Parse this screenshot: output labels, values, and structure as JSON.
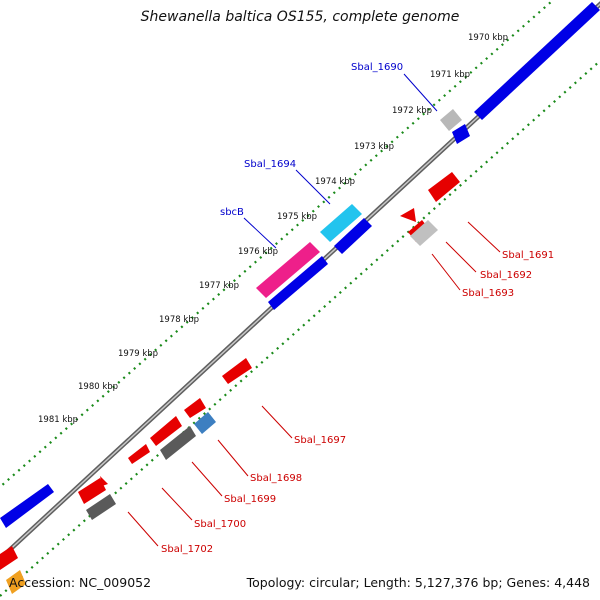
{
  "title": "Shewanella baltica OS155, complete genome",
  "footer": {
    "accession": "Accession: NC_009052",
    "summary": "Topology: circular; Length: 5,127,376 bp; Genes: 4,448"
  },
  "colors": {
    "forward_strand": "#0000e6",
    "reverse_strand": "#e60000",
    "pseudo_gray": "#b8b8b8",
    "dark_gray": "#5a5a5a",
    "cyan": "#22c4ee",
    "magenta": "#ee1f8a",
    "steel_blue": "#3d7fc1",
    "orange": "#f0a020",
    "backbone": "#888888",
    "gc_dots": "#1a8a1a",
    "label_blue": "#0000cc",
    "label_red": "#cc0000"
  },
  "kbp_ticks": [
    "1970 kbp",
    "1971 kbp",
    "1972 kbp",
    "1973 kbp",
    "1974 kbp",
    "1975 kbp",
    "1976 kbp",
    "1977 kbp",
    "1978 kbp",
    "1979 kbp",
    "1980 kbp",
    "1981 kbp"
  ],
  "gene_labels_top": [
    "Sbal_1690",
    "Sbal_1694",
    "sbcB"
  ],
  "gene_labels_bottom": [
    "Sbal_1691",
    "Sbal_1692",
    "Sbal_1693",
    "Sbal_1697",
    "Sbal_1698",
    "Sbal_1699",
    "Sbal_1700",
    "Sbal_1702"
  ]
}
